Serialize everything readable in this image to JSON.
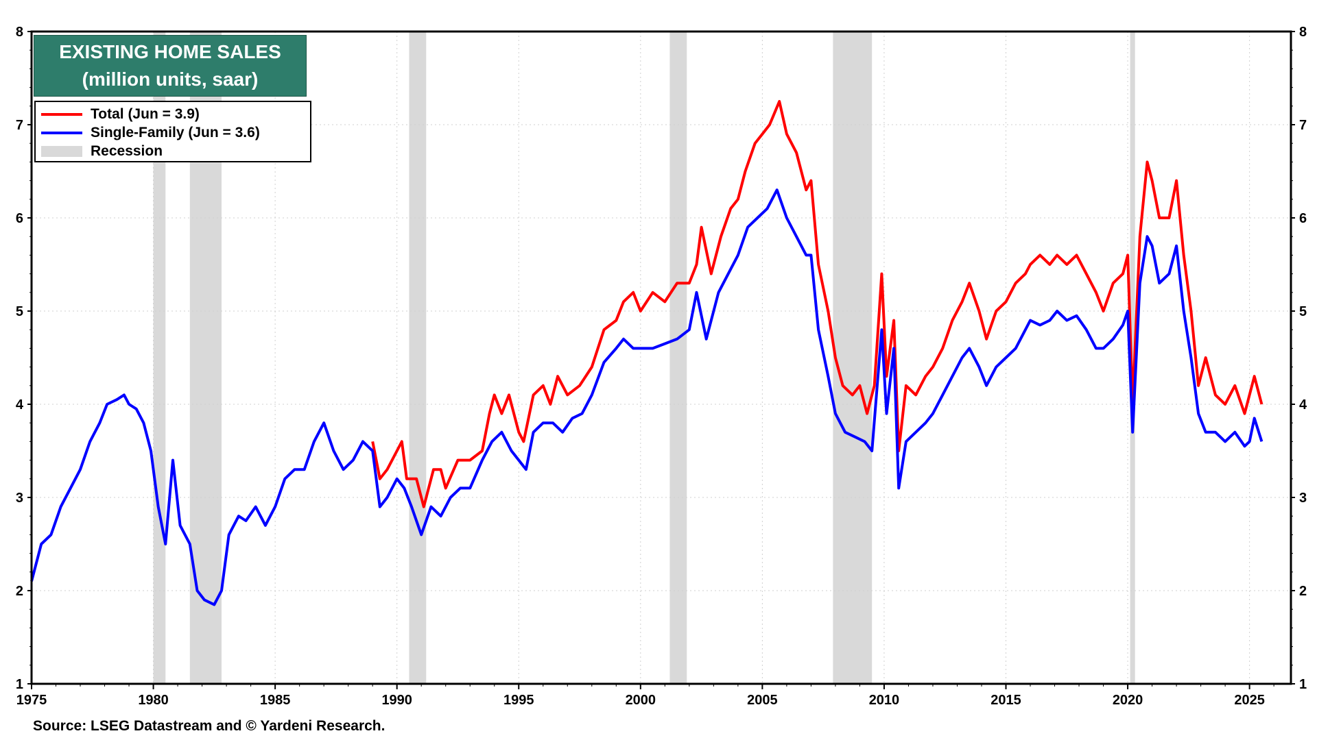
{
  "title_line1": "EXISTING HOME SALES",
  "title_line2": "(million units, saar)",
  "legend": {
    "total": "Total (Jun = 3.9)",
    "single_family": "Single-Family  (Jun = 3.6)",
    "recession": "Recession"
  },
  "source": "Source: LSEG Datastream and © Yardeni Research.",
  "colors": {
    "total": "#ff0000",
    "single_family": "#0000ff",
    "recession": "#d9d9d9",
    "title_bg": "#2e7d6b"
  },
  "chart_data": {
    "type": "line",
    "xlim": [
      1975,
      2026.7
    ],
    "ylim": [
      1,
      8
    ],
    "x_ticks": [
      "1975",
      "1980",
      "1985",
      "1990",
      "1995",
      "2000",
      "2005",
      "2010",
      "2015",
      "2020",
      "2025"
    ],
    "y_ticks": [
      "1",
      "2",
      "3",
      "4",
      "5",
      "6",
      "7",
      "8"
    ],
    "grid": true,
    "legend_position": "top-left",
    "recessions": [
      [
        1980.0,
        1980.5
      ],
      [
        1981.5,
        1982.8
      ],
      [
        1990.5,
        1991.2
      ],
      [
        2001.2,
        2001.9
      ],
      [
        2007.9,
        2009.5
      ],
      [
        2020.1,
        2020.3
      ]
    ],
    "series": [
      {
        "name": "Total (Jun = 3.9)",
        "color": "#ff0000",
        "points": [
          [
            1989.0,
            3.6
          ],
          [
            1989.3,
            3.2
          ],
          [
            1989.6,
            3.3
          ],
          [
            1990.0,
            3.5
          ],
          [
            1990.2,
            3.6
          ],
          [
            1990.4,
            3.2
          ],
          [
            1990.8,
            3.2
          ],
          [
            1991.1,
            2.9
          ],
          [
            1991.5,
            3.3
          ],
          [
            1991.8,
            3.3
          ],
          [
            1992.0,
            3.1
          ],
          [
            1992.5,
            3.4
          ],
          [
            1993.0,
            3.4
          ],
          [
            1993.5,
            3.5
          ],
          [
            1993.8,
            3.9
          ],
          [
            1994.0,
            4.1
          ],
          [
            1994.3,
            3.9
          ],
          [
            1994.6,
            4.1
          ],
          [
            1995.0,
            3.7
          ],
          [
            1995.2,
            3.6
          ],
          [
            1995.6,
            4.1
          ],
          [
            1996.0,
            4.2
          ],
          [
            1996.3,
            4.0
          ],
          [
            1996.6,
            4.3
          ],
          [
            1997.0,
            4.1
          ],
          [
            1997.5,
            4.2
          ],
          [
            1998.0,
            4.4
          ],
          [
            1998.5,
            4.8
          ],
          [
            1999.0,
            4.9
          ],
          [
            1999.3,
            5.1
          ],
          [
            1999.7,
            5.2
          ],
          [
            2000.0,
            5.0
          ],
          [
            2000.5,
            5.2
          ],
          [
            2001.0,
            5.1
          ],
          [
            2001.5,
            5.3
          ],
          [
            2002.0,
            5.3
          ],
          [
            2002.3,
            5.5
          ],
          [
            2002.5,
            5.9
          ],
          [
            2002.9,
            5.4
          ],
          [
            2003.3,
            5.8
          ],
          [
            2003.7,
            6.1
          ],
          [
            2004.0,
            6.2
          ],
          [
            2004.3,
            6.5
          ],
          [
            2004.7,
            6.8
          ],
          [
            2005.0,
            6.9
          ],
          [
            2005.3,
            7.0
          ],
          [
            2005.7,
            7.25
          ],
          [
            2006.0,
            6.9
          ],
          [
            2006.4,
            6.7
          ],
          [
            2006.8,
            6.3
          ],
          [
            2007.0,
            6.4
          ],
          [
            2007.3,
            5.5
          ],
          [
            2007.7,
            5.0
          ],
          [
            2008.0,
            4.5
          ],
          [
            2008.3,
            4.2
          ],
          [
            2008.7,
            4.1
          ],
          [
            2009.0,
            4.2
          ],
          [
            2009.3,
            3.9
          ],
          [
            2009.6,
            4.2
          ],
          [
            2009.9,
            5.4
          ],
          [
            2010.1,
            4.3
          ],
          [
            2010.4,
            4.9
          ],
          [
            2010.6,
            3.5
          ],
          [
            2010.9,
            4.2
          ],
          [
            2011.3,
            4.1
          ],
          [
            2011.7,
            4.3
          ],
          [
            2012.0,
            4.4
          ],
          [
            2012.4,
            4.6
          ],
          [
            2012.8,
            4.9
          ],
          [
            2013.2,
            5.1
          ],
          [
            2013.5,
            5.3
          ],
          [
            2013.9,
            5.0
          ],
          [
            2014.2,
            4.7
          ],
          [
            2014.6,
            5.0
          ],
          [
            2015.0,
            5.1
          ],
          [
            2015.4,
            5.3
          ],
          [
            2015.8,
            5.4
          ],
          [
            2016.0,
            5.5
          ],
          [
            2016.4,
            5.6
          ],
          [
            2016.8,
            5.5
          ],
          [
            2017.1,
            5.6
          ],
          [
            2017.5,
            5.5
          ],
          [
            2017.9,
            5.6
          ],
          [
            2018.3,
            5.4
          ],
          [
            2018.7,
            5.2
          ],
          [
            2019.0,
            5.0
          ],
          [
            2019.4,
            5.3
          ],
          [
            2019.8,
            5.4
          ],
          [
            2020.0,
            5.6
          ],
          [
            2020.2,
            4.0
          ],
          [
            2020.5,
            5.8
          ],
          [
            2020.8,
            6.6
          ],
          [
            2021.0,
            6.4
          ],
          [
            2021.3,
            6.0
          ],
          [
            2021.7,
            6.0
          ],
          [
            2022.0,
            6.4
          ],
          [
            2022.3,
            5.6
          ],
          [
            2022.6,
            5.0
          ],
          [
            2022.9,
            4.2
          ],
          [
            2023.2,
            4.5
          ],
          [
            2023.6,
            4.1
          ],
          [
            2024.0,
            4.0
          ],
          [
            2024.4,
            4.2
          ],
          [
            2024.8,
            3.9
          ],
          [
            2025.0,
            4.1
          ],
          [
            2025.2,
            4.3
          ],
          [
            2025.5,
            4.0
          ]
        ]
      },
      {
        "name": "Single-Family  (Jun = 3.6)",
        "color": "#0000ff",
        "points": [
          [
            1975.0,
            2.1
          ],
          [
            1975.4,
            2.5
          ],
          [
            1975.8,
            2.6
          ],
          [
            1976.2,
            2.9
          ],
          [
            1976.6,
            3.1
          ],
          [
            1977.0,
            3.3
          ],
          [
            1977.4,
            3.6
          ],
          [
            1977.8,
            3.8
          ],
          [
            1978.1,
            4.0
          ],
          [
            1978.5,
            4.05
          ],
          [
            1978.8,
            4.1
          ],
          [
            1979.0,
            4.0
          ],
          [
            1979.3,
            3.95
          ],
          [
            1979.6,
            3.8
          ],
          [
            1979.9,
            3.5
          ],
          [
            1980.2,
            2.9
          ],
          [
            1980.5,
            2.5
          ],
          [
            1980.8,
            3.4
          ],
          [
            1981.1,
            2.7
          ],
          [
            1981.5,
            2.5
          ],
          [
            1981.8,
            2.0
          ],
          [
            1982.1,
            1.9
          ],
          [
            1982.5,
            1.85
          ],
          [
            1982.8,
            2.0
          ],
          [
            1983.1,
            2.6
          ],
          [
            1983.5,
            2.8
          ],
          [
            1983.8,
            2.75
          ],
          [
            1984.2,
            2.9
          ],
          [
            1984.6,
            2.7
          ],
          [
            1985.0,
            2.9
          ],
          [
            1985.4,
            3.2
          ],
          [
            1985.8,
            3.3
          ],
          [
            1986.2,
            3.3
          ],
          [
            1986.6,
            3.6
          ],
          [
            1987.0,
            3.8
          ],
          [
            1987.4,
            3.5
          ],
          [
            1987.8,
            3.3
          ],
          [
            1988.2,
            3.4
          ],
          [
            1988.6,
            3.6
          ],
          [
            1989.0,
            3.5
          ],
          [
            1989.3,
            2.9
          ],
          [
            1989.6,
            3.0
          ],
          [
            1990.0,
            3.2
          ],
          [
            1990.3,
            3.1
          ],
          [
            1990.6,
            2.9
          ],
          [
            1991.0,
            2.6
          ],
          [
            1991.4,
            2.9
          ],
          [
            1991.8,
            2.8
          ],
          [
            1992.2,
            3.0
          ],
          [
            1992.6,
            3.1
          ],
          [
            1993.0,
            3.1
          ],
          [
            1993.5,
            3.4
          ],
          [
            1993.9,
            3.6
          ],
          [
            1994.3,
            3.7
          ],
          [
            1994.7,
            3.5
          ],
          [
            1995.0,
            3.4
          ],
          [
            1995.3,
            3.3
          ],
          [
            1995.6,
            3.7
          ],
          [
            1996.0,
            3.8
          ],
          [
            1996.4,
            3.8
          ],
          [
            1996.8,
            3.7
          ],
          [
            1997.2,
            3.85
          ],
          [
            1997.6,
            3.9
          ],
          [
            1998.0,
            4.1
          ],
          [
            1998.5,
            4.45
          ],
          [
            1999.0,
            4.6
          ],
          [
            1999.3,
            4.7
          ],
          [
            1999.7,
            4.6
          ],
          [
            2000.1,
            4.6
          ],
          [
            2000.5,
            4.6
          ],
          [
            2001.0,
            4.65
          ],
          [
            2001.5,
            4.7
          ],
          [
            2002.0,
            4.8
          ],
          [
            2002.3,
            5.2
          ],
          [
            2002.7,
            4.7
          ],
          [
            2003.2,
            5.2
          ],
          [
            2003.6,
            5.4
          ],
          [
            2004.0,
            5.6
          ],
          [
            2004.4,
            5.9
          ],
          [
            2004.8,
            6.0
          ],
          [
            2005.2,
            6.1
          ],
          [
            2005.6,
            6.3
          ],
          [
            2006.0,
            6.0
          ],
          [
            2006.4,
            5.8
          ],
          [
            2006.8,
            5.6
          ],
          [
            2007.0,
            5.6
          ],
          [
            2007.3,
            4.8
          ],
          [
            2007.7,
            4.3
          ],
          [
            2008.0,
            3.9
          ],
          [
            2008.4,
            3.7
          ],
          [
            2008.8,
            3.65
          ],
          [
            2009.2,
            3.6
          ],
          [
            2009.5,
            3.5
          ],
          [
            2009.9,
            4.8
          ],
          [
            2010.1,
            3.9
          ],
          [
            2010.4,
            4.6
          ],
          [
            2010.6,
            3.1
          ],
          [
            2010.9,
            3.6
          ],
          [
            2011.3,
            3.7
          ],
          [
            2011.7,
            3.8
          ],
          [
            2012.0,
            3.9
          ],
          [
            2012.4,
            4.1
          ],
          [
            2012.8,
            4.3
          ],
          [
            2013.2,
            4.5
          ],
          [
            2013.5,
            4.6
          ],
          [
            2013.9,
            4.4
          ],
          [
            2014.2,
            4.2
          ],
          [
            2014.6,
            4.4
          ],
          [
            2015.0,
            4.5
          ],
          [
            2015.4,
            4.6
          ],
          [
            2015.8,
            4.8
          ],
          [
            2016.0,
            4.9
          ],
          [
            2016.4,
            4.85
          ],
          [
            2016.8,
            4.9
          ],
          [
            2017.1,
            5.0
          ],
          [
            2017.5,
            4.9
          ],
          [
            2017.9,
            4.95
          ],
          [
            2018.3,
            4.8
          ],
          [
            2018.7,
            4.6
          ],
          [
            2019.0,
            4.6
          ],
          [
            2019.4,
            4.7
          ],
          [
            2019.8,
            4.85
          ],
          [
            2020.0,
            5.0
          ],
          [
            2020.2,
            3.7
          ],
          [
            2020.5,
            5.3
          ],
          [
            2020.8,
            5.8
          ],
          [
            2021.0,
            5.7
          ],
          [
            2021.3,
            5.3
          ],
          [
            2021.7,
            5.4
          ],
          [
            2022.0,
            5.7
          ],
          [
            2022.3,
            5.0
          ],
          [
            2022.6,
            4.5
          ],
          [
            2022.9,
            3.9
          ],
          [
            2023.2,
            3.7
          ],
          [
            2023.6,
            3.7
          ],
          [
            2024.0,
            3.6
          ],
          [
            2024.4,
            3.7
          ],
          [
            2024.8,
            3.55
          ],
          [
            2025.0,
            3.6
          ],
          [
            2025.2,
            3.85
          ],
          [
            2025.5,
            3.6
          ]
        ]
      }
    ]
  }
}
